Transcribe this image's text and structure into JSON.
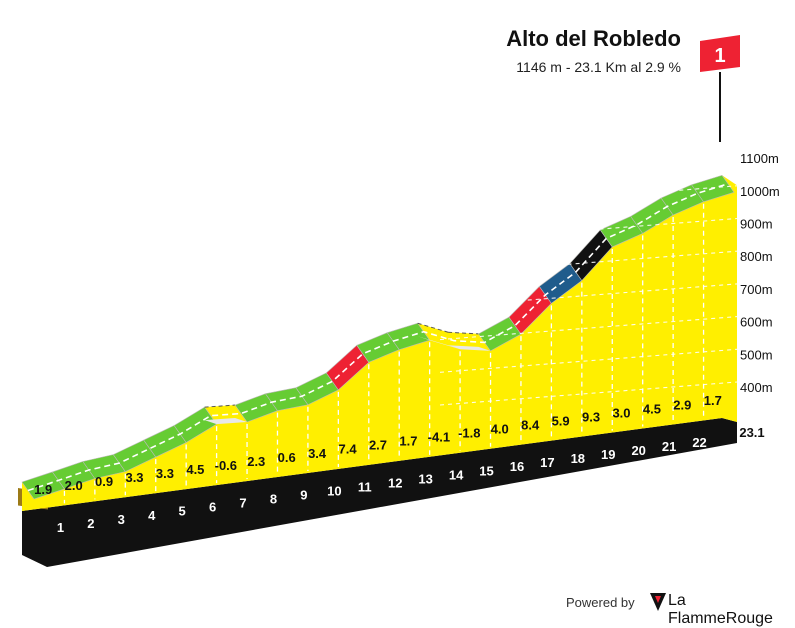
{
  "header": {
    "title": "Alto del Robledo",
    "subtitle": "1146 m - 23.1 Km al 2.9 %",
    "flag_number": "1"
  },
  "footer": {
    "powered_by": "Powered by",
    "brand_name": "La FlammeRouge"
  },
  "colors": {
    "yellow": "#ffef00",
    "green": "#66cc33",
    "blue": "#1f5c8c",
    "red": "#ee2233",
    "black": "#111111",
    "flag": "#ee2233",
    "brown": "#9c7a16"
  },
  "chart_data": {
    "type": "area",
    "distance_label": "23.1",
    "altitude_ticks": [
      "1100m",
      "1000m",
      "900m",
      "800m",
      "700m",
      "600m",
      "500m",
      "400m"
    ],
    "altitude_tick_values": [
      1100,
      1000,
      900,
      800,
      700,
      600,
      500,
      400
    ],
    "km_markers": [
      "1",
      "2",
      "3",
      "4",
      "5",
      "6",
      "7",
      "8",
      "9",
      "10",
      "11",
      "12",
      "13",
      "14",
      "15",
      "16",
      "17",
      "18",
      "19",
      "20",
      "21",
      "22"
    ],
    "gradients": [
      1.9,
      2.0,
      0.9,
      3.3,
      3.3,
      4.5,
      -0.6,
      2.3,
      0.6,
      3.4,
      7.4,
      2.7,
      1.7,
      -4.1,
      -1.8,
      4.0,
      8.4,
      5.9,
      9.3,
      3.0,
      4.5,
      2.9,
      1.7
    ],
    "gradient_labels": [
      "1.9",
      "2.0",
      "0.9",
      "3.3",
      "3.3",
      "4.5",
      "-0.6",
      "2.3",
      "0.6",
      "3.4",
      "7.4",
      "2.7",
      "1.7",
      "-4.1",
      "-1.8",
      "4.0",
      "8.4",
      "5.9",
      "9.3",
      "3.0",
      "4.5",
      "2.9",
      "1.7"
    ]
  }
}
